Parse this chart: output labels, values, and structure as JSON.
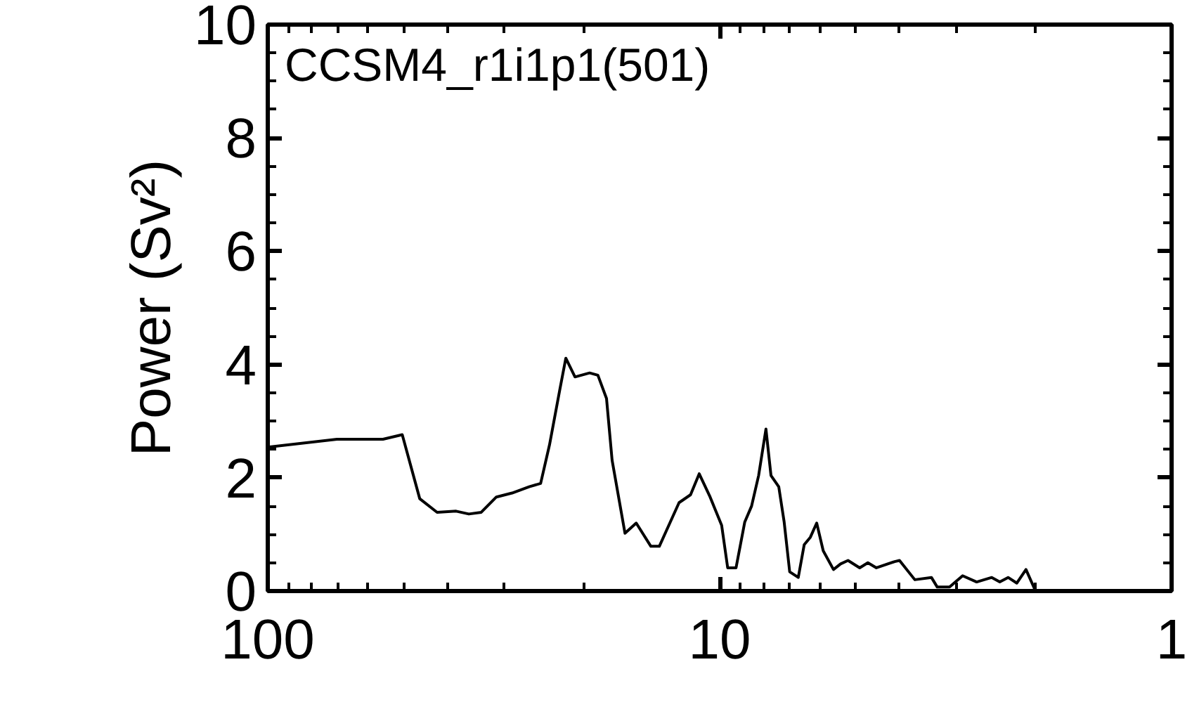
{
  "chart_data": {
    "type": "line",
    "title": "CCSM4_r1i1p1(501)",
    "ylabel": "Power (Sv²)",
    "log": "x",
    "xlim": [
      100,
      1
    ],
    "xticks": [
      100,
      10,
      1
    ],
    "ylim": [
      0,
      10
    ],
    "yticks": [
      0,
      2,
      4,
      6,
      8,
      10
    ],
    "grid": false,
    "marker": "none",
    "line_style": "solid",
    "series": [
      {
        "color": "#000000",
        "x": [
          100,
          70.3,
          55.6,
          50.4,
          46.1,
          42.2,
          38.3,
          35.9,
          33.7,
          31.2,
          28.8,
          26.4,
          24.9,
          23.8,
          22.6,
          21.9,
          20.9,
          19.4,
          18.6,
          17.8,
          17.3,
          16.2,
          15.3,
          14.2,
          13.6,
          12.3,
          11.6,
          11.1,
          10.5,
          9.9,
          9.6,
          9.2,
          8.8,
          8.5,
          8.2,
          7.9,
          7.7,
          7.4,
          7.2,
          7.0,
          6.7,
          6.5,
          6.3,
          6.1,
          5.9,
          5.6,
          5.4,
          5.2,
          4.9,
          4.7,
          4.5,
          4.1,
          4.0,
          3.7,
          3.4,
          3.3,
          3.1,
          2.9,
          2.7,
          2.5,
          2.4,
          2.3,
          2.2,
          2.1,
          2.0
        ],
        "values": [
          2.54,
          2.68,
          2.68,
          2.76,
          1.63,
          1.39,
          1.41,
          1.36,
          1.39,
          1.66,
          1.73,
          1.84,
          1.9,
          2.58,
          3.54,
          4.11,
          3.78,
          3.85,
          3.81,
          3.4,
          2.31,
          1.02,
          1.2,
          0.79,
          0.79,
          1.56,
          1.7,
          2.07,
          1.66,
          1.16,
          0.41,
          0.41,
          1.22,
          1.5,
          2.04,
          2.86,
          2.04,
          1.84,
          1.22,
          0.34,
          0.24,
          0.82,
          0.95,
          1.2,
          0.71,
          0.38,
          0.48,
          0.54,
          0.41,
          0.5,
          0.41,
          0.52,
          0.54,
          0.2,
          0.24,
          0.07,
          0.07,
          0.27,
          0.16,
          0.24,
          0.16,
          0.24,
          0.14,
          0.38,
          0.0
        ]
      }
    ]
  }
}
